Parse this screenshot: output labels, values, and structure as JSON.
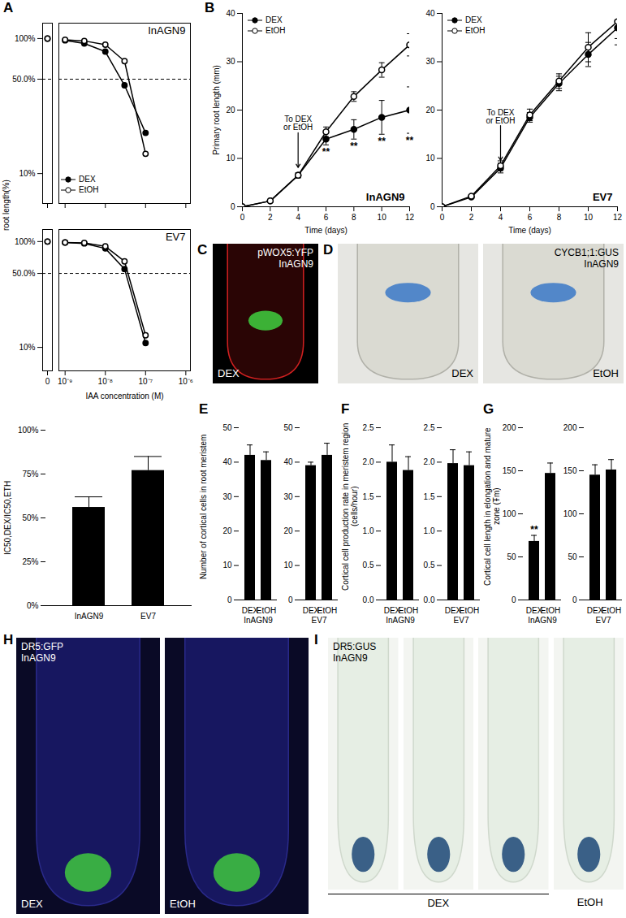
{
  "chart_data": [
    {
      "panel": "A",
      "type": "line",
      "ylabel": "root length(%)",
      "xlabel": "IAA concentration (M)",
      "log": true,
      "xlim": [
        7e-10,
        1.3e-06
      ],
      "xticks": [
        0,
        {
          "value": 1e-09,
          "label": "10⁻⁹"
        },
        {
          "value": 1e-08,
          "label": "10⁻⁸"
        },
        {
          "value": 1e-07,
          "label": "10⁻⁷"
        },
        {
          "value": 1e-06,
          "label": "10⁻⁶"
        }
      ],
      "ylim": [
        6,
        130
      ],
      "yticks": [
        {
          "value": 100,
          "label": "100%"
        },
        {
          "value": 50,
          "label": "50.0%"
        },
        {
          "value": 10,
          "label": "10%"
        }
      ],
      "reference_line": 50,
      "subplots": [
        {
          "label": "InAGN9",
          "tick_labels": "y",
          "legend": "bottom-left",
          "x": [
            0,
            1e-09,
            3e-09,
            1e-08,
            3e-08,
            1e-07
          ],
          "series": [
            {
              "name": "DEX",
              "marker": "filled circle",
              "color": "#000000",
              "values": [
                100,
                97,
                92,
                80,
                45,
                20
              ]
            },
            {
              "name": "EtOH",
              "marker": "open circle",
              "color": "#000000",
              "values": [
                100,
                98,
                96,
                90,
                68,
                14
              ]
            }
          ]
        },
        {
          "label": "EV7",
          "x": [
            0,
            1e-09,
            3e-09,
            1e-08,
            3e-08,
            1e-07
          ],
          "series": [
            {
              "name": "DEX",
              "marker": "filled circle",
              "color": "#000000",
              "values": [
                100,
                98,
                96,
                86,
                55,
                11
              ]
            },
            {
              "name": "EtOH",
              "marker": "open circle",
              "color": "#000000",
              "values": [
                100,
                98,
                97,
                90,
                65,
                13
              ]
            }
          ]
        }
      ]
    },
    {
      "panel": "A",
      "type": "bar",
      "ylabel": "IC50,DEX/IC50,ETH",
      "categories": [
        "InAGN9",
        "EV7"
      ],
      "values": [
        56,
        77
      ],
      "errors": [
        6,
        8
      ],
      "color": "#000000",
      "ylim": [
        0,
        100
      ],
      "yticks": [
        {
          "value": 0,
          "label": "0%"
        },
        {
          "value": 25,
          "label": "25%"
        },
        {
          "value": 50,
          "label": "50%"
        },
        {
          "value": 75,
          "label": "75%"
        },
        {
          "value": 100,
          "label": "100%"
        }
      ]
    },
    {
      "panel": "B",
      "type": "line",
      "ylabel": "Primary root length (mm)",
      "xlabel": "Time (days)",
      "legend": "top-left",
      "xlim": [
        0,
        12
      ],
      "xticks": [
        0,
        2,
        4,
        6,
        8,
        10,
        12
      ],
      "ylim": [
        0,
        40
      ],
      "yticks": [
        0,
        10,
        20,
        30,
        40
      ],
      "subplots": [
        {
          "label": "InAGN9",
          "x": [
            0,
            2,
            4,
            6,
            8,
            10,
            12
          ],
          "annotation": {
            "text": "To DEX\nor EtOH",
            "x": 4
          },
          "significance": [
            null,
            null,
            null,
            "**",
            "**",
            "**",
            "**"
          ],
          "series": [
            {
              "name": "DEX",
              "marker": "filled circle",
              "color": "#000000",
              "values": [
                0,
                1.2,
                6.5,
                14,
                16,
                18.5,
                20
              ],
              "errors": [
                0,
                0.2,
                0.5,
                1.2,
                2,
                3.5,
                4.8
              ]
            },
            {
              "name": "EtOH",
              "marker": "open circle",
              "color": "#000000",
              "values": [
                0,
                1.2,
                6.5,
                15.5,
                22.8,
                28.3,
                33.5
              ],
              "errors": [
                0,
                0.2,
                0.5,
                1,
                1,
                1.5,
                2.3
              ]
            }
          ]
        },
        {
          "label": "EV7",
          "x": [
            0,
            2,
            4,
            6,
            8,
            10,
            12
          ],
          "annotation": {
            "text": "To DEX\nor EtOH",
            "x": 4
          },
          "series": [
            {
              "name": "DEX",
              "marker": "filled circle",
              "color": "#000000",
              "values": [
                0,
                2,
                8,
                18.5,
                25.5,
                31.5,
                37
              ],
              "errors": [
                0,
                0.3,
                1,
                1,
                1.5,
                2.5,
                3.5
              ]
            },
            {
              "name": "EtOH",
              "marker": "open circle",
              "color": "#000000",
              "values": [
                0,
                2.2,
                8.5,
                19,
                26,
                33,
                38.3
              ],
              "errors": [
                0,
                0.3,
                1,
                1.2,
                1.5,
                3,
                3.5
              ]
            }
          ]
        }
      ]
    },
    {
      "panel": "E",
      "type": "bar",
      "ylabel": "Number of cortical cells in root meristem",
      "color": "#000000",
      "ylim": [
        0,
        50
      ],
      "yticks": [
        0,
        10,
        20,
        30,
        40,
        50
      ],
      "groups": [
        {
          "label": "InAGN9",
          "categories": [
            "DEX",
            "EtOH"
          ],
          "values": [
            42,
            40.5
          ],
          "errors": [
            3,
            2.5
          ]
        },
        {
          "label": "EV7",
          "categories": [
            "DEX",
            "EtOH"
          ],
          "values": [
            39,
            42
          ],
          "errors": [
            1,
            3.5
          ]
        }
      ]
    },
    {
      "panel": "F",
      "type": "bar",
      "ylabel": "Cortical cell production rate in meristem region (cells/hour)",
      "color": "#000000",
      "ylim": [
        0,
        2.5
      ],
      "yticks": [
        {
          "value": 0,
          "label": "0.0"
        },
        {
          "value": 0.5,
          "label": "0.5"
        },
        {
          "value": 1,
          "label": "1.0"
        },
        {
          "value": 1.5,
          "label": "1.5"
        },
        {
          "value": 2,
          "label": "2.0"
        },
        {
          "value": 2.5,
          "label": "2.5"
        }
      ],
      "groups": [
        {
          "label": "InAGN9",
          "categories": [
            "DEX",
            "EtOH"
          ],
          "values": [
            2.0,
            1.88
          ],
          "errors": [
            0.25,
            0.2
          ]
        },
        {
          "label": "EV7",
          "categories": [
            "DEX",
            "EtOH"
          ],
          "values": [
            1.98,
            1.95
          ],
          "errors": [
            0.2,
            0.2
          ]
        }
      ]
    },
    {
      "panel": "G",
      "type": "bar",
      "ylabel": "Cortical cell length in elongation and mature zone (Ŧm)",
      "color": "#000000",
      "ylim": [
        0,
        200
      ],
      "yticks": [
        0,
        50,
        100,
        150,
        200
      ],
      "groups": [
        {
          "label": "InAGN9",
          "categories": [
            "DEX",
            "EtOH"
          ],
          "values": [
            68,
            147
          ],
          "errors": [
            7,
            12
          ],
          "significance": [
            "**",
            null
          ]
        },
        {
          "label": "EV7",
          "categories": [
            "DEX",
            "EtOH"
          ],
          "values": [
            145,
            151
          ],
          "errors": [
            12,
            12
          ]
        }
      ]
    }
  ],
  "images": [
    {
      "panel": "C",
      "title": "pWOX5:YFP",
      "subtitle": "InAGN9",
      "frame_labels": [
        "DEX"
      ]
    },
    {
      "panel": "D",
      "title": "CYCB1;1:GUS",
      "subtitle": "InAGN9",
      "frame_labels": [
        "DEX",
        "EtOH"
      ]
    },
    {
      "panel": "H",
      "title": "DR5:GFP",
      "subtitle": "InAGN9",
      "frame_labels": [
        "DEX",
        "EtOH"
      ]
    },
    {
      "panel": "I",
      "title": "DR5:GUS",
      "subtitle": "InAGN9",
      "frame_labels": [
        null,
        null,
        null,
        "EtOH"
      ],
      "group_label": "DEX"
    }
  ]
}
